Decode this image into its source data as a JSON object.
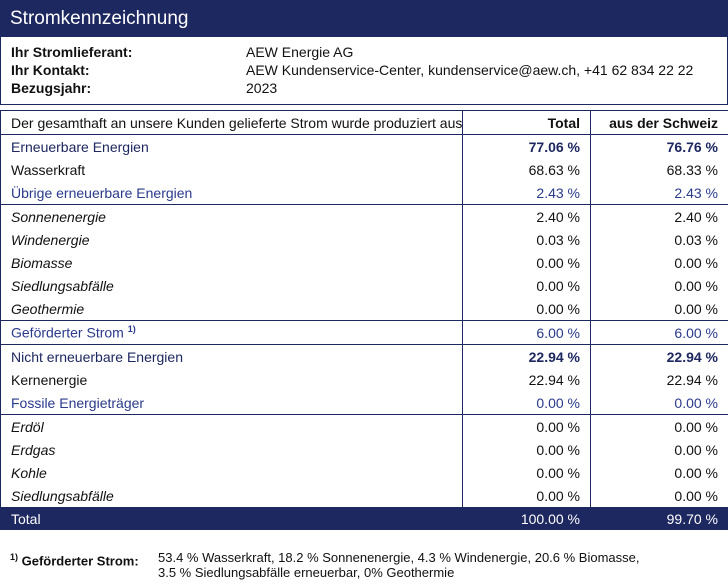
{
  "header": {
    "title": "Stromkennzeichnung"
  },
  "info": [
    {
      "label": "Ihr Stromlieferant:",
      "value": "AEW Energie AG"
    },
    {
      "label": "Ihr Kontakt:",
      "value": "AEW Kundenservice-Center, kundenservice@aew.ch, +41 62 834 22 22"
    },
    {
      "label": "Bezugsjahr:",
      "value": "2023"
    }
  ],
  "table": {
    "columns": [
      "Der gesamthaft an unsere Kunden gelieferte Strom wurde produziert aus:",
      "Total",
      "aus der Schweiz"
    ],
    "rows": [
      {
        "label": "Erneuerbare Energien",
        "total": "77.06 %",
        "swiss": "76.76 %",
        "style": "category"
      },
      {
        "label": "Wasserkraft",
        "total": "68.63 %",
        "swiss": "68.33 %",
        "style": "plain"
      },
      {
        "label": "Übrige erneuerbare Energien",
        "total": "2.43 %",
        "swiss": "2.43 %",
        "style": "sub"
      },
      {
        "label": "Sonnenenergie",
        "total": "2.40 %",
        "swiss": "2.40 %",
        "style": "italic"
      },
      {
        "label": "Windenergie",
        "total": "0.03 %",
        "swiss": "0.03 %",
        "style": "italic"
      },
      {
        "label": "Biomasse",
        "total": "0.00 %",
        "swiss": "0.00 %",
        "style": "italic"
      },
      {
        "label": "Siedlungsabfälle",
        "total": "0.00 %",
        "swiss": "0.00 %",
        "style": "italic"
      },
      {
        "label": "Geothermie",
        "total": "0.00 %",
        "swiss": "0.00 %",
        "style": "italic"
      },
      {
        "label": "Geförderter Strom",
        "note": "1)",
        "total": "6.00 %",
        "swiss": "6.00 %",
        "style": "sub"
      },
      {
        "label": "Nicht erneuerbare Energien",
        "total": "22.94 %",
        "swiss": "22.94 %",
        "style": "category"
      },
      {
        "label": "Kernenergie",
        "total": "22.94 %",
        "swiss": "22.94 %",
        "style": "plain"
      },
      {
        "label": "Fossile Energieträger",
        "total": "0.00 %",
        "swiss": "0.00 %",
        "style": "sub"
      },
      {
        "label": "Erdöl",
        "total": "0.00 %",
        "swiss": "0.00 %",
        "style": "italic"
      },
      {
        "label": "Erdgas",
        "total": "0.00 %",
        "swiss": "0.00 %",
        "style": "italic"
      },
      {
        "label": "Kohle",
        "total": "0.00 %",
        "swiss": "0.00 %",
        "style": "italic"
      },
      {
        "label": "Siedlungsabfälle",
        "total": "0.00 %",
        "swiss": "0.00 %",
        "style": "italic"
      }
    ],
    "total": {
      "label": "Total",
      "total": "100.00 %",
      "swiss": "99.70 %"
    }
  },
  "footnote": {
    "mark": "1)",
    "label": "Geförderter Strom:",
    "lines": [
      "53.4 % Wasserkraft, 18.2 % Sonnenenergie, 4.3 % Windenergie, 20.6 % Biomasse,",
      "3.5 % Siedlungsabfälle erneuerbar, 0% Geothermie"
    ]
  }
}
